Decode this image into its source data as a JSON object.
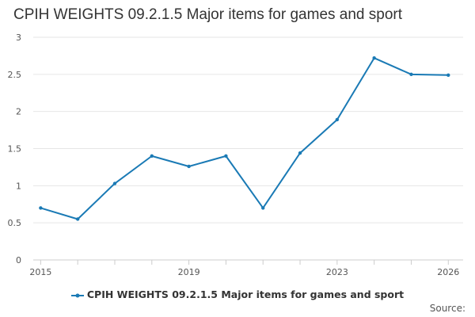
{
  "chart_data": {
    "type": "line",
    "title": "CPIH WEIGHTS 09.2.1.5 Major items for games and sport",
    "xlabel": "",
    "ylabel": "",
    "x": [
      2015,
      2016,
      2017,
      2018,
      2019,
      2020,
      2021,
      2022,
      2023,
      2024,
      2025,
      2026
    ],
    "x_tick_labels": [
      "2015",
      "2019",
      "2023",
      "2026"
    ],
    "x_tick_values": [
      2015,
      2019,
      2023,
      2026
    ],
    "ylim": [
      0,
      3
    ],
    "y_ticks": [
      0,
      0.5,
      1,
      1.5,
      2,
      2.5,
      3
    ],
    "y_tick_labels": [
      "0",
      "0.5",
      "1",
      "1.5",
      "2",
      "2.5",
      "3"
    ],
    "series": [
      {
        "name": "CPIH WEIGHTS 09.2.1.5 Major items for games and sport",
        "color": "#1f77b4",
        "values": [
          0.7,
          0.55,
          1.03,
          1.4,
          1.26,
          1.4,
          0.7,
          1.44,
          1.89,
          2.72,
          2.5,
          2.49
        ]
      }
    ],
    "grid": "horizontal",
    "legend_position": "bottom"
  },
  "legend": {
    "label": "CPIH WEIGHTS 09.2.1.5 Major items for games and sport"
  },
  "footer": {
    "source_label": "Source:"
  },
  "colors": {
    "series": "#1a7ab5",
    "grid": "#e6e6e6",
    "axis": "#cccccc"
  }
}
